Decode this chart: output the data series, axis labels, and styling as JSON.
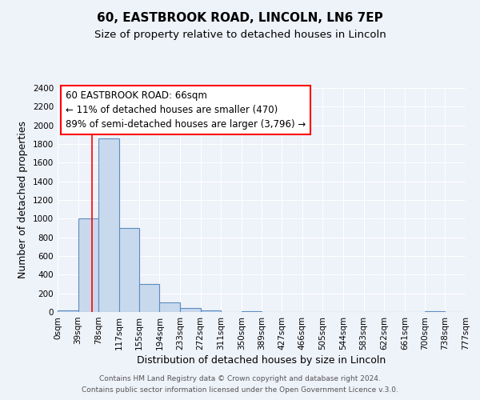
{
  "title": "60, EASTBROOK ROAD, LINCOLN, LN6 7EP",
  "subtitle": "Size of property relative to detached houses in Lincoln",
  "xlabel": "Distribution of detached houses by size in Lincoln",
  "ylabel": "Number of detached properties",
  "bin_edges": [
    0,
    39,
    78,
    117,
    155,
    194,
    233,
    272,
    311,
    350,
    389,
    427,
    466,
    505,
    544,
    583,
    622,
    661,
    700,
    738,
    777
  ],
  "bin_labels": [
    "0sqm",
    "39sqm",
    "78sqm",
    "117sqm",
    "155sqm",
    "194sqm",
    "233sqm",
    "272sqm",
    "311sqm",
    "350sqm",
    "389sqm",
    "427sqm",
    "466sqm",
    "505sqm",
    "544sqm",
    "583sqm",
    "622sqm",
    "661sqm",
    "700sqm",
    "738sqm",
    "777sqm"
  ],
  "bar_heights": [
    20,
    1000,
    1860,
    900,
    300,
    100,
    45,
    15,
    0,
    10,
    0,
    0,
    0,
    0,
    0,
    0,
    0,
    0,
    5,
    0
  ],
  "bar_color": "#c9d9ed",
  "bar_edge_color": "#5b8dc0",
  "ylim": [
    0,
    2400
  ],
  "yticks": [
    0,
    200,
    400,
    600,
    800,
    1000,
    1200,
    1400,
    1600,
    1800,
    2000,
    2200,
    2400
  ],
  "red_line_x": 66,
  "annotation_text_line1": "60 EASTBROOK ROAD: 66sqm",
  "annotation_text_line2": "← 11% of detached houses are smaller (470)",
  "annotation_text_line3": "89% of semi-detached houses are larger (3,796) →",
  "footer_line1": "Contains HM Land Registry data © Crown copyright and database right 2024.",
  "footer_line2": "Contains public sector information licensed under the Open Government Licence v.3.0.",
  "background_color": "#eef2f9",
  "plot_bg_color": "#eef2f9",
  "grid_color": "#ffffff",
  "title_fontsize": 11,
  "subtitle_fontsize": 9.5,
  "axis_label_fontsize": 9,
  "tick_fontsize": 7.5,
  "annotation_fontsize": 8.5,
  "footer_fontsize": 6.5
}
